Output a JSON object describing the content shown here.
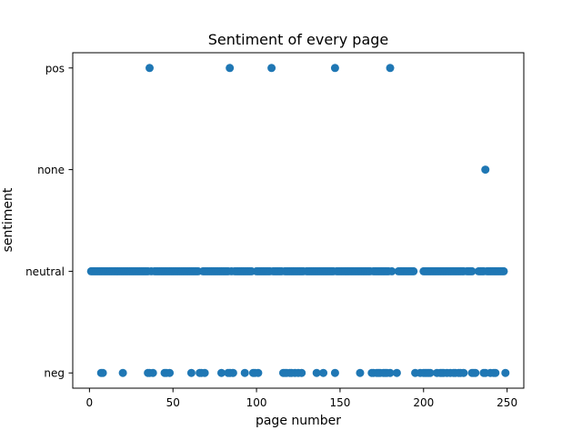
{
  "chart_data": {
    "type": "scatter",
    "title": "Sentiment of every page",
    "xlabel": "page number",
    "ylabel": "sentiment",
    "xlim": [
      -10,
      260
    ],
    "xticks": [
      0,
      50,
      100,
      150,
      200,
      250
    ],
    "ylim": [
      -0.15,
      3.15
    ],
    "yticks": [
      "neg",
      "neutral",
      "none",
      "pos"
    ],
    "grid": false,
    "marker_color": "#1f77b4",
    "points": {
      "pos": [
        36,
        84,
        109,
        147,
        180
      ],
      "none": [
        237
      ],
      "neutral": [
        1,
        2,
        3,
        4,
        5,
        6,
        7,
        8,
        9,
        10,
        11,
        12,
        13,
        14,
        15,
        16,
        17,
        18,
        19,
        20,
        21,
        22,
        23,
        24,
        25,
        26,
        27,
        28,
        29,
        30,
        31,
        32,
        33,
        34,
        35,
        37,
        39,
        40,
        41,
        42,
        43,
        44,
        45,
        46,
        47,
        48,
        49,
        50,
        51,
        52,
        53,
        54,
        55,
        56,
        57,
        58,
        59,
        60,
        61,
        62,
        63,
        64,
        65,
        68,
        69,
        70,
        71,
        72,
        73,
        74,
        75,
        76,
        77,
        78,
        79,
        80,
        81,
        82,
        83,
        85,
        87,
        88,
        89,
        90,
        91,
        92,
        93,
        94,
        95,
        96,
        97,
        100,
        101,
        102,
        103,
        104,
        105,
        106,
        107,
        108,
        110,
        111,
        112,
        113,
        114,
        115,
        117,
        118,
        119,
        120,
        121,
        122,
        123,
        124,
        125,
        126,
        127,
        128,
        130,
        131,
        132,
        133,
        134,
        135,
        136,
        137,
        138,
        139,
        140,
        141,
        142,
        143,
        144,
        145,
        146,
        148,
        149,
        150,
        151,
        152,
        153,
        154,
        155,
        156,
        157,
        158,
        159,
        160,
        161,
        162,
        163,
        164,
        165,
        166,
        167,
        168,
        170,
        171,
        172,
        173,
        174,
        175,
        176,
        177,
        178,
        179,
        181,
        185,
        186,
        187,
        188,
        189,
        190,
        191,
        192,
        193,
        194,
        200,
        201,
        202,
        203,
        204,
        205,
        206,
        207,
        208,
        209,
        210,
        211,
        212,
        213,
        214,
        215,
        216,
        217,
        218,
        219,
        220,
        221,
        222,
        223,
        224,
        226,
        227,
        228,
        229,
        233,
        234,
        235,
        236,
        238,
        239,
        240,
        241,
        242,
        243,
        244,
        245,
        246,
        247,
        248
      ],
      "neg": [
        7,
        8,
        20,
        35,
        36,
        38,
        45,
        46,
        48,
        61,
        66,
        67,
        69,
        79,
        83,
        84,
        86,
        93,
        98,
        99,
        101,
        116,
        117,
        118,
        120,
        121,
        123,
        125,
        127,
        136,
        140,
        147,
        162,
        169,
        170,
        172,
        173,
        174,
        176,
        177,
        178,
        180,
        184,
        195,
        198,
        200,
        201,
        202,
        203,
        204,
        208,
        210,
        211,
        212,
        214,
        216,
        218,
        219,
        221,
        222,
        224,
        229,
        230,
        231,
        236,
        237,
        240,
        242,
        243,
        249
      ]
    }
  }
}
